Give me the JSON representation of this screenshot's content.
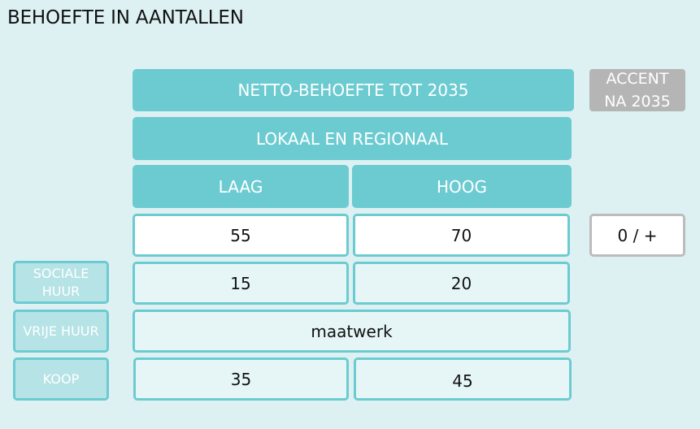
{
  "title": "BEHOEFTE IN AANTALLEN",
  "headers": {
    "netto": "NETTO-BEHOEFTE TOT 2035",
    "lokaal": "LOKAAL EN REGIONAAL",
    "laag": "LAAG",
    "hoog": "HOOG"
  },
  "accent": {
    "line1": "ACCENT",
    "line2": "NA 2035"
  },
  "totals": {
    "laag": "55",
    "hoog": "70",
    "accent": "0 / +"
  },
  "rows": [
    {
      "label_line1": "SOCIALE",
      "label_line2": "HUUR",
      "laag": "15",
      "hoog": "20"
    },
    {
      "label_line1": "VRIJE HUUR",
      "label_line2": "",
      "value": "maatwerk"
    },
    {
      "label_line1": "KOOP",
      "label_line2": "",
      "laag": "35",
      "hoog": "45"
    }
  ]
}
